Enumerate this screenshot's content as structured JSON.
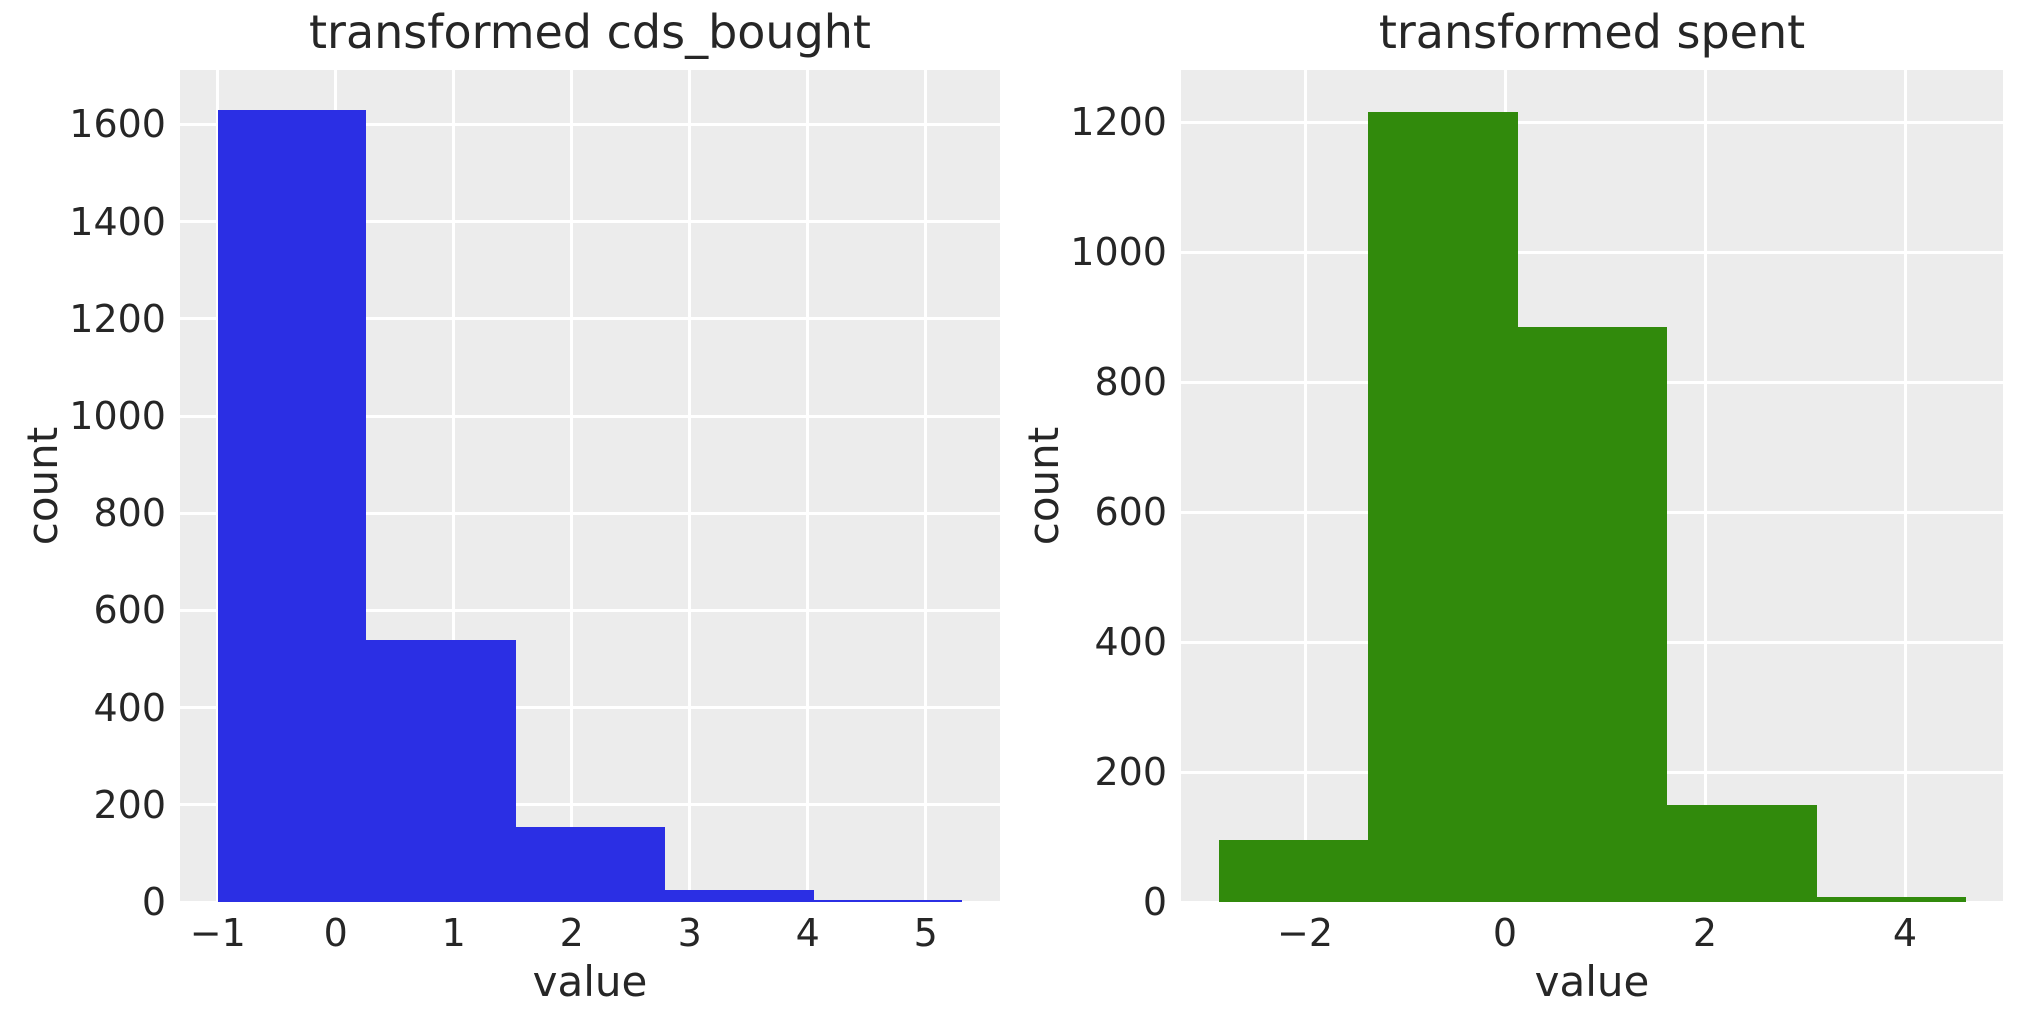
{
  "figure": {
    "background": "#ffffff",
    "axes_background": "#ececec",
    "grid_color": "#ffffff",
    "text_color": "#262626"
  },
  "chart_data": [
    {
      "type": "bar",
      "chart_kind": "histogram",
      "title": "transformed cds_bought",
      "xlabel": "value",
      "ylabel": "count",
      "bar_color": "#2b2fe4",
      "bin_edges": [
        -1.0,
        0.26,
        1.53,
        2.79,
        4.05,
        5.31
      ],
      "counts": [
        1630,
        540,
        155,
        25,
        5
      ],
      "x_ticks": [
        -1,
        0,
        1,
        2,
        3,
        4,
        5
      ],
      "x_tick_labels": [
        "−1",
        "0",
        "1",
        "2",
        "3",
        "4",
        "5"
      ],
      "y_ticks": [
        0,
        200,
        400,
        600,
        800,
        1000,
        1200,
        1400,
        1600
      ],
      "y_tick_labels": [
        "0",
        "200",
        "400",
        "600",
        "800",
        "1000",
        "1200",
        "1400",
        "1600"
      ],
      "xlim": [
        -1.32,
        5.63
      ],
      "ylim": [
        0,
        1712
      ],
      "grid": true,
      "legend": false
    },
    {
      "type": "bar",
      "chart_kind": "histogram",
      "title": "transformed spent",
      "xlabel": "value",
      "ylabel": "count",
      "bar_color": "#318a0c",
      "bin_edges": [
        -2.86,
        -1.37,
        0.13,
        1.62,
        3.12,
        4.61
      ],
      "counts": [
        95,
        1215,
        885,
        150,
        7
      ],
      "x_ticks": [
        -2,
        0,
        2,
        4
      ],
      "x_tick_labels": [
        "−2",
        "0",
        "2",
        "4"
      ],
      "y_ticks": [
        0,
        200,
        400,
        600,
        800,
        1000,
        1200
      ],
      "y_tick_labels": [
        "0",
        "200",
        "400",
        "600",
        "800",
        "1000",
        "1200"
      ],
      "xlim": [
        -3.24,
        4.98
      ],
      "ylim": [
        0,
        1280
      ],
      "grid": true,
      "legend": false
    }
  ]
}
